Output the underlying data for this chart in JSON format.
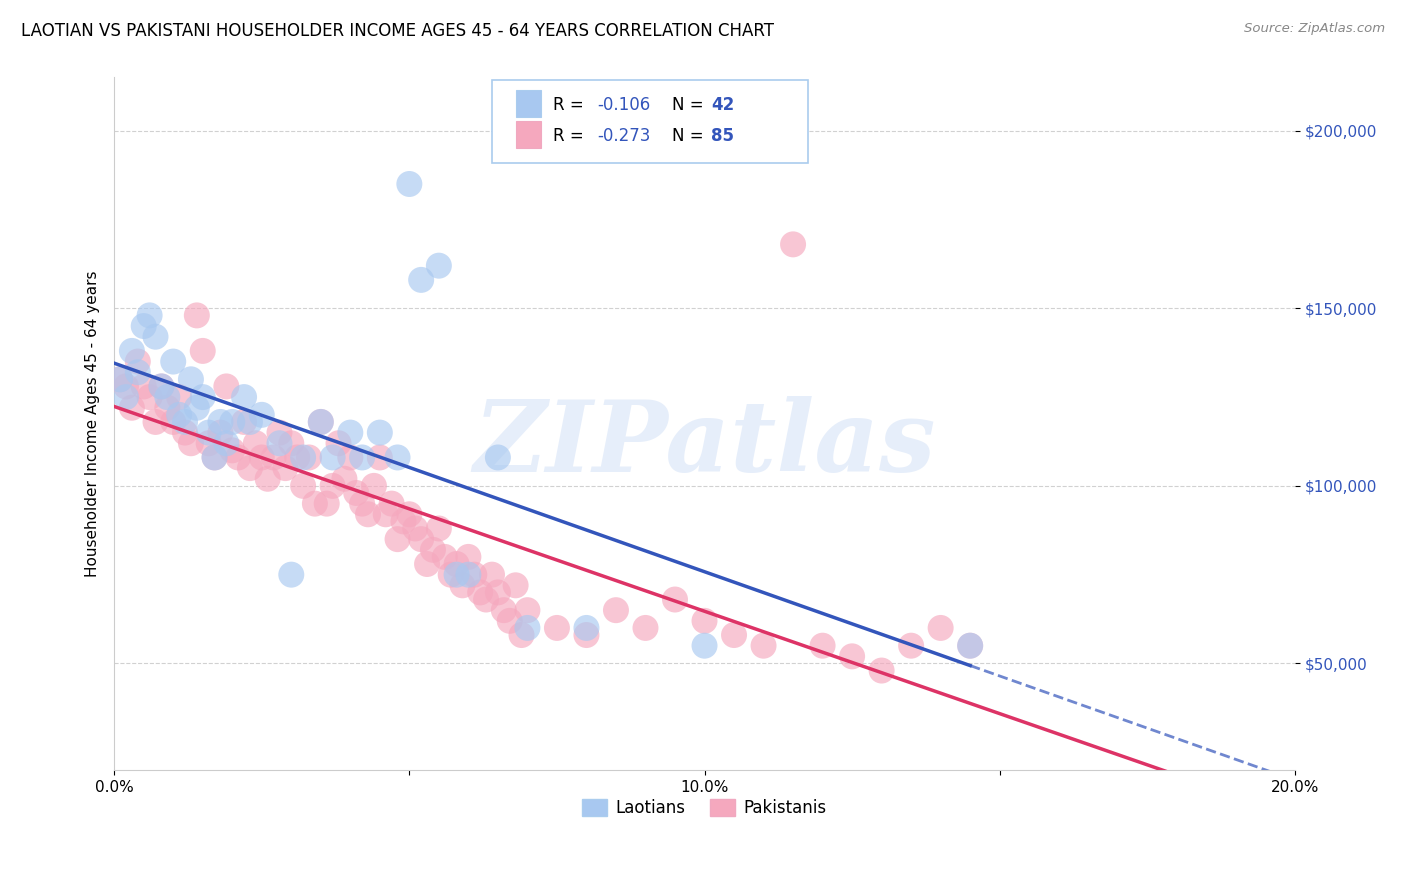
{
  "title": "LAOTIAN VS PAKISTANI HOUSEHOLDER INCOME AGES 45 - 64 YEARS CORRELATION CHART",
  "source": "Source: ZipAtlas.com",
  "ylabel": "Householder Income Ages 45 - 64 years",
  "x_min": 0.0,
  "x_max": 0.2,
  "y_min": 20000,
  "y_max": 215000,
  "yticks": [
    50000,
    100000,
    150000,
    200000
  ],
  "ytick_labels": [
    "$50,000",
    "$100,000",
    "$150,000",
    "$200,000"
  ],
  "xticks": [
    0.0,
    0.05,
    0.1,
    0.15,
    0.2
  ],
  "xtick_labels": [
    "0.0%",
    "",
    "10.0%",
    "",
    "20.0%"
  ],
  "legend_labels": [
    "Laotians",
    "Pakistanis"
  ],
  "laotian_color": "#a8c8f0",
  "pakistani_color": "#f5a8be",
  "laotian_line_color": "#3355bb",
  "pakistani_line_color": "#dd3366",
  "R_laotian": -0.106,
  "N_laotian": 42,
  "R_pakistani": -0.273,
  "N_pakistani": 85,
  "watermark": "ZIPatlas",
  "background_color": "#ffffff",
  "grid_color": "#cccccc",
  "laotian_scatter": [
    [
      0.001,
      130000
    ],
    [
      0.002,
      125000
    ],
    [
      0.003,
      138000
    ],
    [
      0.004,
      132000
    ],
    [
      0.005,
      145000
    ],
    [
      0.006,
      148000
    ],
    [
      0.007,
      142000
    ],
    [
      0.008,
      128000
    ],
    [
      0.009,
      125000
    ],
    [
      0.01,
      135000
    ],
    [
      0.011,
      120000
    ],
    [
      0.012,
      118000
    ],
    [
      0.013,
      130000
    ],
    [
      0.014,
      122000
    ],
    [
      0.015,
      125000
    ],
    [
      0.016,
      115000
    ],
    [
      0.017,
      108000
    ],
    [
      0.018,
      118000
    ],
    [
      0.019,
      112000
    ],
    [
      0.02,
      118000
    ],
    [
      0.022,
      125000
    ],
    [
      0.023,
      118000
    ],
    [
      0.025,
      120000
    ],
    [
      0.028,
      112000
    ],
    [
      0.03,
      75000
    ],
    [
      0.032,
      108000
    ],
    [
      0.035,
      118000
    ],
    [
      0.037,
      108000
    ],
    [
      0.04,
      115000
    ],
    [
      0.042,
      108000
    ],
    [
      0.045,
      115000
    ],
    [
      0.048,
      108000
    ],
    [
      0.05,
      185000
    ],
    [
      0.052,
      158000
    ],
    [
      0.055,
      162000
    ],
    [
      0.058,
      75000
    ],
    [
      0.06,
      75000
    ],
    [
      0.065,
      108000
    ],
    [
      0.07,
      60000
    ],
    [
      0.08,
      60000
    ],
    [
      0.1,
      55000
    ],
    [
      0.145,
      55000
    ]
  ],
  "pakistani_scatter": [
    [
      0.001,
      130000
    ],
    [
      0.002,
      128000
    ],
    [
      0.003,
      122000
    ],
    [
      0.004,
      135000
    ],
    [
      0.005,
      128000
    ],
    [
      0.006,
      125000
    ],
    [
      0.007,
      118000
    ],
    [
      0.008,
      128000
    ],
    [
      0.009,
      122000
    ],
    [
      0.01,
      118000
    ],
    [
      0.011,
      125000
    ],
    [
      0.012,
      115000
    ],
    [
      0.013,
      112000
    ],
    [
      0.014,
      148000
    ],
    [
      0.015,
      138000
    ],
    [
      0.016,
      112000
    ],
    [
      0.017,
      108000
    ],
    [
      0.018,
      115000
    ],
    [
      0.019,
      128000
    ],
    [
      0.02,
      110000
    ],
    [
      0.021,
      108000
    ],
    [
      0.022,
      118000
    ],
    [
      0.023,
      105000
    ],
    [
      0.024,
      112000
    ],
    [
      0.025,
      108000
    ],
    [
      0.026,
      102000
    ],
    [
      0.027,
      108000
    ],
    [
      0.028,
      115000
    ],
    [
      0.029,
      105000
    ],
    [
      0.03,
      112000
    ],
    [
      0.031,
      108000
    ],
    [
      0.032,
      100000
    ],
    [
      0.033,
      108000
    ],
    [
      0.034,
      95000
    ],
    [
      0.035,
      118000
    ],
    [
      0.036,
      95000
    ],
    [
      0.037,
      100000
    ],
    [
      0.038,
      112000
    ],
    [
      0.039,
      102000
    ],
    [
      0.04,
      108000
    ],
    [
      0.041,
      98000
    ],
    [
      0.042,
      95000
    ],
    [
      0.043,
      92000
    ],
    [
      0.044,
      100000
    ],
    [
      0.045,
      108000
    ],
    [
      0.046,
      92000
    ],
    [
      0.047,
      95000
    ],
    [
      0.048,
      85000
    ],
    [
      0.049,
      90000
    ],
    [
      0.05,
      92000
    ],
    [
      0.051,
      88000
    ],
    [
      0.052,
      85000
    ],
    [
      0.053,
      78000
    ],
    [
      0.054,
      82000
    ],
    [
      0.055,
      88000
    ],
    [
      0.056,
      80000
    ],
    [
      0.057,
      75000
    ],
    [
      0.058,
      78000
    ],
    [
      0.059,
      72000
    ],
    [
      0.06,
      80000
    ],
    [
      0.061,
      75000
    ],
    [
      0.062,
      70000
    ],
    [
      0.063,
      68000
    ],
    [
      0.064,
      75000
    ],
    [
      0.065,
      70000
    ],
    [
      0.066,
      65000
    ],
    [
      0.067,
      62000
    ],
    [
      0.068,
      72000
    ],
    [
      0.069,
      58000
    ],
    [
      0.07,
      65000
    ],
    [
      0.075,
      60000
    ],
    [
      0.08,
      58000
    ],
    [
      0.085,
      65000
    ],
    [
      0.09,
      60000
    ],
    [
      0.095,
      68000
    ],
    [
      0.1,
      62000
    ],
    [
      0.105,
      58000
    ],
    [
      0.11,
      55000
    ],
    [
      0.115,
      168000
    ],
    [
      0.12,
      55000
    ],
    [
      0.125,
      52000
    ],
    [
      0.13,
      48000
    ],
    [
      0.135,
      55000
    ],
    [
      0.14,
      60000
    ],
    [
      0.145,
      55000
    ]
  ]
}
